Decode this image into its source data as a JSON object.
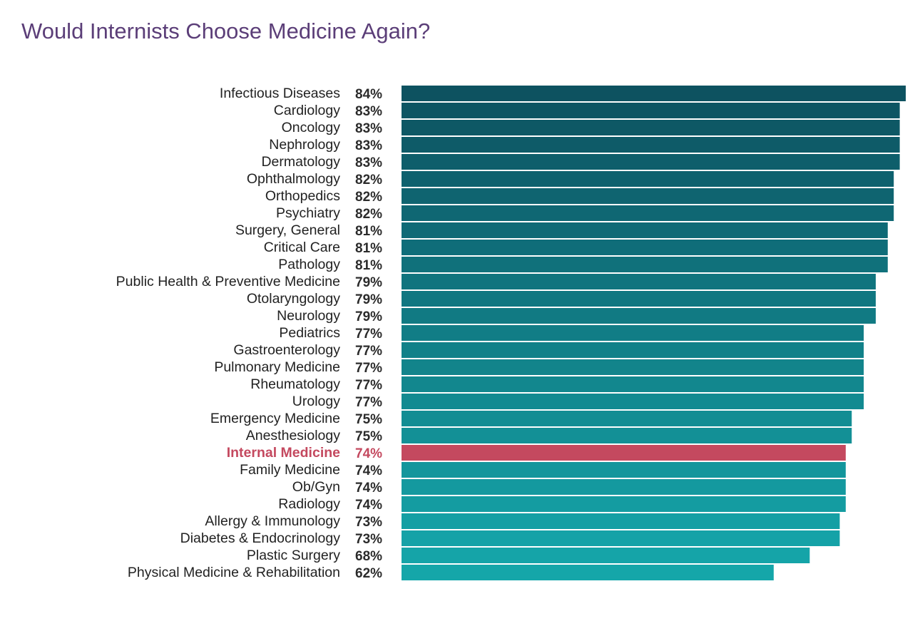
{
  "chart_data": {
    "type": "bar",
    "orientation": "horizontal",
    "title": "Would Internists Choose Medicine Again?",
    "categories": [
      "Infectious Diseases",
      "Cardiology",
      "Oncology",
      "Nephrology",
      "Dermatology",
      "Ophthalmology",
      "Orthopedics",
      "Psychiatry",
      "Surgery, General",
      "Critical Care",
      "Pathology",
      "Public Health & Preventive Medicine",
      "Otolaryngology",
      "Neurology",
      "Pediatrics",
      "Gastroenterology",
      "Pulmonary Medicine",
      "Rheumatology",
      "Urology",
      "Emergency Medicine",
      "Anesthesiology",
      "Internal Medicine",
      "Family Medicine",
      "Ob/Gyn",
      "Radiology",
      "Allergy & Immunology",
      "Diabetes & Endocrinology",
      "Plastic Surgery",
      "Physical Medicine & Rehabilitation"
    ],
    "values": [
      84,
      83,
      83,
      83,
      83,
      82,
      82,
      82,
      81,
      81,
      81,
      79,
      79,
      79,
      77,
      77,
      77,
      77,
      77,
      75,
      75,
      74,
      74,
      74,
      74,
      73,
      73,
      68,
      62
    ],
    "value_labels": [
      "84%",
      "83%",
      "83%",
      "83%",
      "83%",
      "82%",
      "82%",
      "82%",
      "81%",
      "81%",
      "81%",
      "79%",
      "79%",
      "79%",
      "77%",
      "77%",
      "77%",
      "77%",
      "77%",
      "75%",
      "75%",
      "74%",
      "74%",
      "74%",
      "74%",
      "73%",
      "73%",
      "68%",
      "62%"
    ],
    "colors": [
      "#0d5260",
      "#0d5563",
      "#0e5865",
      "#0e5b68",
      "#0e5e6b",
      "#0e616e",
      "#0f6470",
      "#0f6773",
      "#0f6a76",
      "#0f6d79",
      "#10717b",
      "#10747e",
      "#107781",
      "#117a83",
      "#117d86",
      "#118189",
      "#12848b",
      "#12878e",
      "#128a91",
      "#128d93",
      "#139096",
      "#c4495f",
      "#13969c",
      "#14999f",
      "#149ca1",
      "#149fa4",
      "#15a2a7",
      "#15a4a8",
      "#15a6a9"
    ],
    "highlight_color": "#c4495f"
  }
}
